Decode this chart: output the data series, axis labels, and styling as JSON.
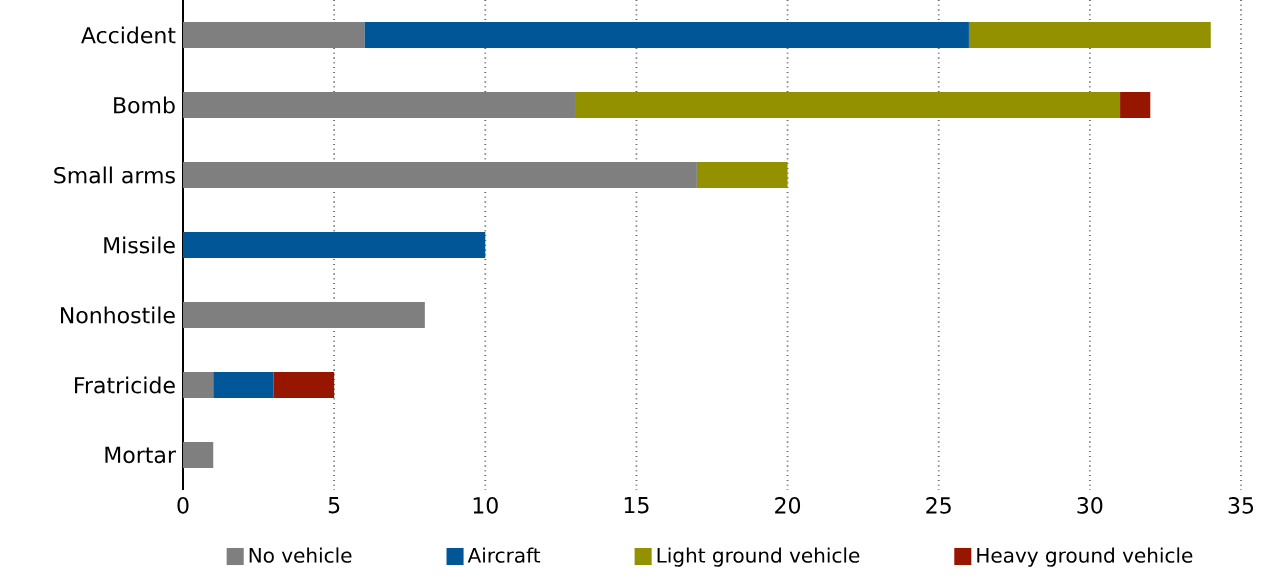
{
  "chart_data": {
    "type": "bar",
    "orientation": "horizontal",
    "stacked": true,
    "categories": [
      "Accident",
      "Bomb",
      "Small arms",
      "Missile",
      "Nonhostile",
      "Fratricide",
      "Mortar"
    ],
    "series": [
      {
        "name": "No vehicle",
        "color": "#7f7f7f",
        "values": [
          6,
          13,
          17,
          null,
          8,
          1,
          1
        ]
      },
      {
        "name": "Aircraft",
        "color": "#005696",
        "values": [
          20,
          null,
          null,
          10,
          null,
          2,
          null
        ]
      },
      {
        "name": "Light ground vehicle",
        "color": "#939100",
        "values": [
          8,
          18,
          3,
          null,
          null,
          null,
          null
        ]
      },
      {
        "name": "Heavy ground vehicle",
        "color": "#961600",
        "values": [
          null,
          1,
          null,
          null,
          null,
          2,
          null
        ]
      }
    ],
    "xlim": [
      0,
      35
    ],
    "xticks": [
      0,
      5,
      10,
      15,
      20,
      25,
      30,
      35
    ],
    "grid": "x",
    "legend": "bottom"
  }
}
